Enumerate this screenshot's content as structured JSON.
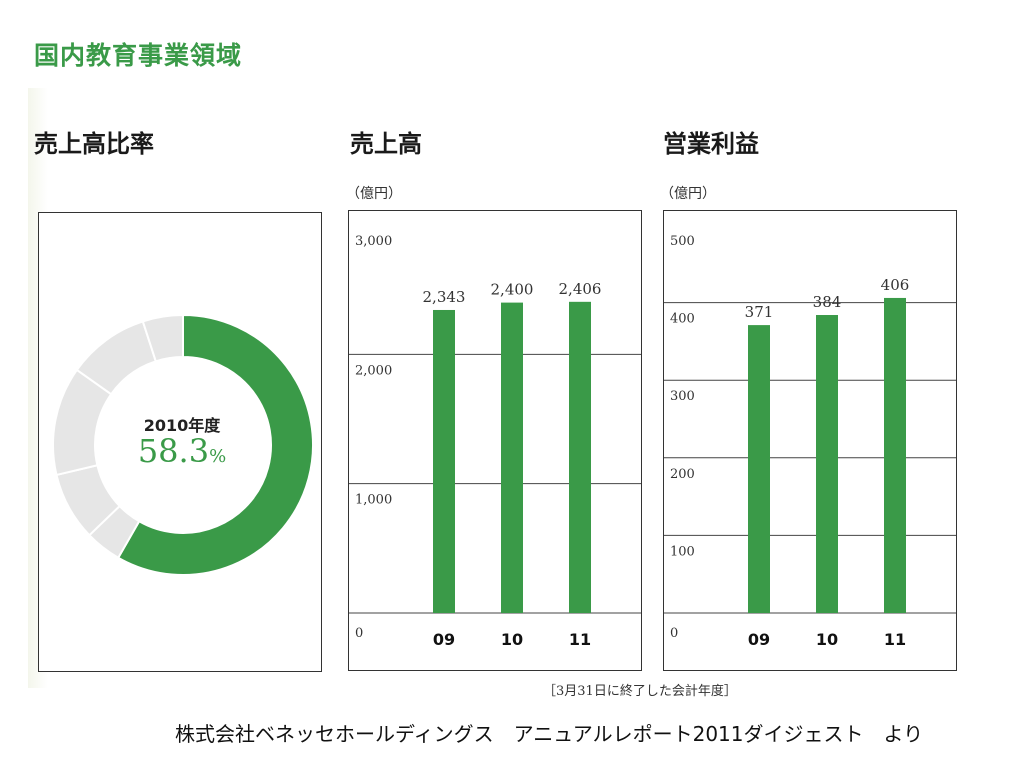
{
  "page": {
    "section_title": "国内教育事業領域",
    "fiscal_note": "［3月31日に終了した会計年度］",
    "source_note": "株式会社ベネッセホールディングス　アニュアルレポート2011ダイジェスト　より"
  },
  "colors": {
    "green": "#3a9a48",
    "gray": "#e6e6e6"
  },
  "chart_data": [
    {
      "type": "pie",
      "title": "売上高比率",
      "center_label": "2010年度",
      "center_value": "58.3",
      "center_unit": "%",
      "slices": [
        {
          "value": 58.3,
          "highlight": true
        },
        {
          "value": 4.5,
          "highlight": false
        },
        {
          "value": 8.5,
          "highlight": false
        },
        {
          "value": 13.5,
          "highlight": false
        },
        {
          "value": 10.2,
          "highlight": false
        },
        {
          "value": 5.0,
          "highlight": false
        }
      ]
    },
    {
      "type": "bar",
      "title": "売上高",
      "unit": "（億円）",
      "categories": [
        "09",
        "10",
        "11"
      ],
      "values": [
        2343,
        2400,
        2406
      ],
      "value_labels": [
        "2,343",
        "2,400",
        "2,406"
      ],
      "ylim": [
        0,
        3000
      ],
      "yticks": [
        0,
        1000,
        2000,
        3000
      ],
      "ytick_labels": [
        "0",
        "1,000",
        "2,000",
        "3,000"
      ]
    },
    {
      "type": "bar",
      "title": "営業利益",
      "unit": "（億円）",
      "categories": [
        "09",
        "10",
        "11"
      ],
      "values": [
        371,
        384,
        406
      ],
      "value_labels": [
        "371",
        "384",
        "406"
      ],
      "ylim": [
        0,
        500
      ],
      "yticks": [
        0,
        100,
        200,
        300,
        400,
        500
      ],
      "ytick_labels": [
        "0",
        "100",
        "200",
        "300",
        "400",
        "500"
      ]
    }
  ]
}
